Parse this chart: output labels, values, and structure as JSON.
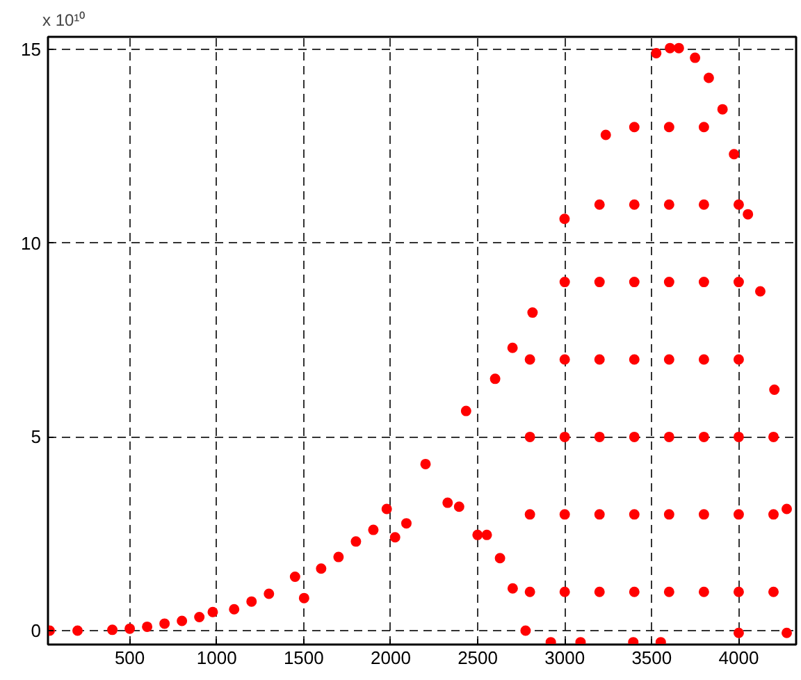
{
  "chart_data": {
    "type": "scatter",
    "annotations": [
      "x 10¹⁰"
    ],
    "xlim": [
      30,
      4330
    ],
    "ylim": [
      -0.36,
      15.33
    ],
    "xticks": [
      500,
      1000,
      1500,
      2000,
      2500,
      3000,
      3500,
      4000
    ],
    "yticks": [
      0,
      5,
      10,
      15
    ],
    "grid": true,
    "marker": "circle",
    "series": [
      {
        "color": "#ff0000",
        "x": [
          40,
          200,
          400,
          500,
          600,
          700,
          800,
          900,
          977,
          1100,
          1200,
          1300,
          1450,
          1502,
          1600,
          1700,
          1800,
          1900,
          1977,
          2025,
          2090,
          2200,
          2327,
          2393,
          2433,
          2499,
          2552,
          2600,
          2628,
          2701,
          2700,
          2775,
          2815,
          2920,
          2999,
          3091,
          3236,
          3394,
          3526,
          3552,
          3605,
          3656,
          3749,
          3828,
          3907,
          3973,
          4000,
          4053,
          4124,
          4205,
          4276,
          4276,
          2800,
          2800,
          2800,
          2800,
          3000,
          3000,
          3000,
          3000,
          3000,
          3200,
          3200,
          3200,
          3200,
          3200,
          3200,
          3400,
          3400,
          3400,
          3400,
          3400,
          3400,
          3400,
          3600,
          3600,
          3600,
          3600,
          3600,
          3600,
          3600,
          3800,
          3800,
          3800,
          3800,
          3800,
          3800,
          3800,
          4000,
          4000,
          4000,
          4000,
          4000,
          4000,
          4200,
          4200,
          4200
        ],
        "values": [
          0,
          0,
          0.02,
          0.05,
          0.1,
          0.18,
          0.25,
          0.35,
          0.48,
          0.55,
          0.75,
          0.95,
          1.39,
          0.84,
          1.6,
          1.9,
          2.3,
          2.6,
          3.14,
          2.41,
          2.77,
          4.3,
          3.3,
          3.2,
          5.67,
          2.47,
          2.47,
          6.5,
          1.87,
          1.09,
          7.3,
          0,
          8.21,
          -0.3,
          10.63,
          -0.3,
          12.8,
          -0.3,
          14.91,
          -0.3,
          15.04,
          15.04,
          14.79,
          14.27,
          13.46,
          12.3,
          -0.06,
          10.75,
          8.76,
          6.22,
          3.14,
          -0.06,
          1,
          3,
          5,
          7,
          1,
          3,
          5,
          7,
          9,
          1,
          3,
          5,
          7,
          9,
          11,
          1,
          3,
          5,
          7,
          9,
          11,
          13,
          1,
          3,
          5,
          7,
          9,
          11,
          13,
          1,
          3,
          5,
          7,
          9,
          11,
          13,
          1,
          3,
          5,
          7,
          9,
          11,
          1,
          3,
          5
        ]
      }
    ]
  }
}
